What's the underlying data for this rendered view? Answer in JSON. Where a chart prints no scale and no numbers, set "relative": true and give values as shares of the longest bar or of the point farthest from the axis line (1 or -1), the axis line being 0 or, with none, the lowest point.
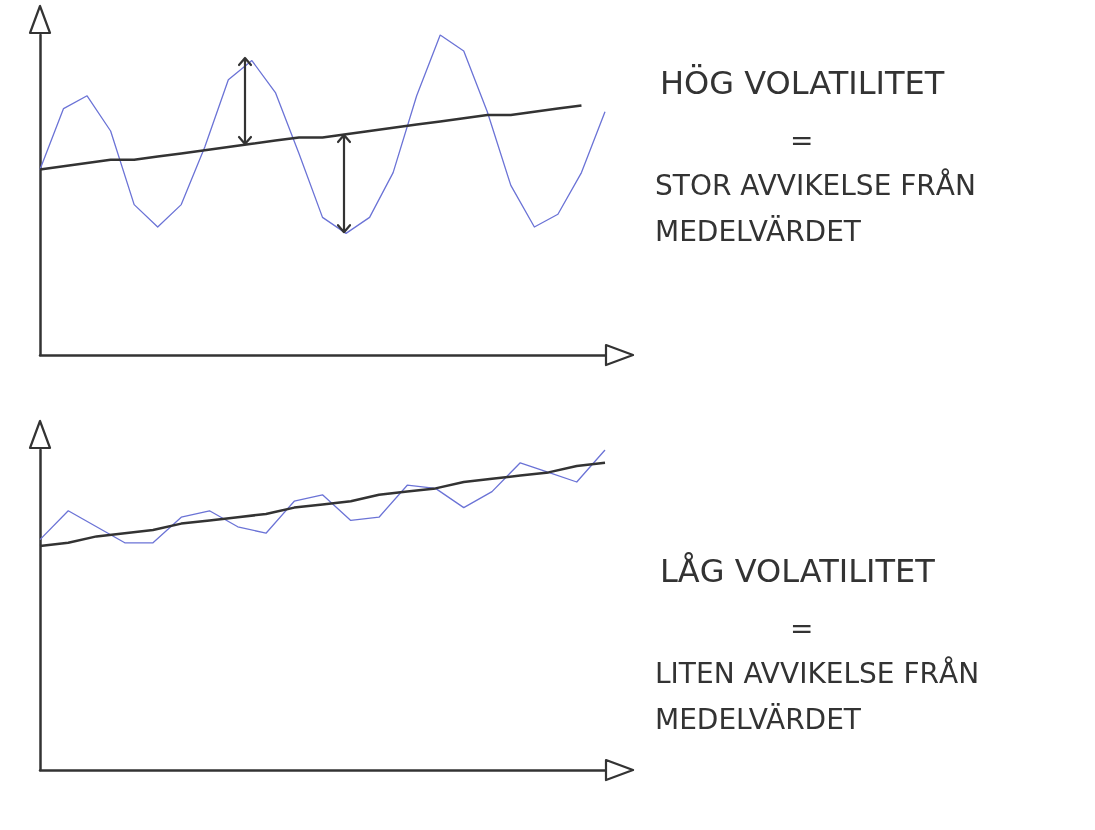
{
  "chart_data": [
    {
      "type": "line",
      "relative": true,
      "marker": "none",
      "categories": [
        null,
        null,
        null,
        null,
        null,
        null,
        null,
        null,
        null,
        null,
        null,
        null,
        null,
        null,
        null,
        null,
        null,
        null,
        null,
        null,
        null,
        null,
        null,
        null,
        null
      ],
      "series": [
        {
          "color": "#6b73d6",
          "values": [
            0.58,
            0.77,
            0.81,
            0.7,
            0.47,
            0.4,
            0.47,
            0.65,
            0.86,
            0.92,
            0.82,
            0.63,
            0.43,
            0.38,
            0.43,
            0.57,
            0.81,
            1.0,
            0.95,
            0.76,
            0.53,
            0.4,
            0.44,
            0.57,
            0.76
          ]
        },
        {
          "color": "#333333",
          "values": [
            0.58,
            0.59,
            0.6,
            0.61,
            0.61,
            0.62,
            0.63,
            0.64,
            0.65,
            0.66,
            0.67,
            0.68,
            0.68,
            0.69,
            0.7,
            0.71,
            0.72,
            0.73,
            0.74,
            0.75,
            0.75,
            0.76,
            0.77,
            0.78,
            null
          ]
        }
      ]
    },
    {
      "type": "other",
      "title": "HÖG VOLATILITET",
      "annotations": [
        "=",
        "STOR AVVIKELSE FRÅN MEDELVÄRDET"
      ]
    },
    {
      "type": "line",
      "relative": true,
      "marker": "none",
      "categories": [
        null,
        null,
        null,
        null,
        null,
        null,
        null,
        null,
        null,
        null,
        null,
        null,
        null,
        null,
        null,
        null,
        null,
        null,
        null,
        null,
        null
      ],
      "series": [
        {
          "color": "#6b73d6",
          "values": [
            0.72,
            0.81,
            0.76,
            0.71,
            0.71,
            0.79,
            0.81,
            0.76,
            0.74,
            0.84,
            0.86,
            0.78,
            0.79,
            0.89,
            0.88,
            0.82,
            0.87,
            0.96,
            0.93,
            0.9,
            1.0
          ]
        },
        {
          "color": "#333333",
          "values": [
            0.7,
            0.71,
            0.73,
            0.74,
            0.75,
            0.77,
            0.78,
            0.79,
            0.8,
            0.82,
            0.83,
            0.84,
            0.86,
            0.87,
            0.88,
            0.9,
            0.91,
            0.92,
            0.93,
            0.95,
            0.96
          ]
        }
      ]
    },
    {
      "type": "other",
      "title": "LÅG VOLATILITET",
      "annotations": [
        "=",
        "LITEN AVVIKELSE FRÅN MEDELVÄRDET"
      ]
    }
  ]
}
